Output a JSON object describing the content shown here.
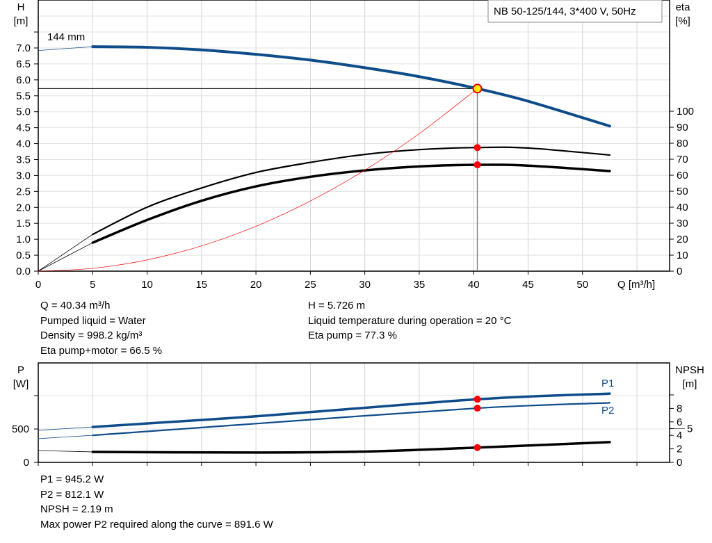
{
  "title": "NB 50-125/144, 3*400 V, 50Hz",
  "impeller_label": "144 mm",
  "chart_data": [
    {
      "type": "line",
      "xlabel": "Q [m³/h]",
      "ylabel": "H\n[m]",
      "y2label": "eta\n[%]",
      "xlim": [
        0,
        58
      ],
      "ylim": [
        0,
        8.5
      ],
      "y2lim": [
        0,
        100
      ],
      "grid": true,
      "xticks": [
        0,
        5,
        10,
        15,
        20,
        25,
        30,
        35,
        40,
        45,
        50
      ],
      "yticks": [
        0.0,
        0.5,
        1.0,
        1.5,
        2.0,
        2.5,
        3.0,
        3.5,
        4.0,
        4.5,
        5.0,
        5.5,
        6.0,
        6.5,
        7.0
      ],
      "y2ticks": [
        0,
        10,
        20,
        30,
        40,
        50,
        60,
        70,
        80,
        90,
        100
      ],
      "series": [
        {
          "id": "H",
          "color": "#0e4c8a",
          "x": [
            0,
            5,
            10,
            15,
            20,
            25,
            30,
            35,
            40.34,
            45,
            52.5
          ],
          "y": [
            6.92,
            7.04,
            7.02,
            6.94,
            6.8,
            6.62,
            6.38,
            6.1,
            5.726,
            5.33,
            4.55
          ]
        },
        {
          "id": "eta_pump",
          "axis": "y2",
          "color": "#000000",
          "x": [
            0,
            5,
            10,
            15,
            20,
            25,
            30,
            35,
            40.34,
            45,
            52.5
          ],
          "y": [
            0,
            23,
            40,
            52,
            61.7,
            68,
            73,
            76,
            77.3,
            77,
            72.6
          ]
        },
        {
          "id": "eta_pump_motor",
          "axis": "y2",
          "color": "#000000",
          "x": [
            0,
            5,
            10,
            15,
            20,
            25,
            30,
            35,
            40.34,
            45,
            52.5
          ],
          "y": [
            0,
            17.8,
            32,
            44,
            53,
            59,
            63,
            65.5,
            66.5,
            66,
            62.6
          ]
        },
        {
          "id": "system_curve",
          "color": "#ff0000",
          "x": [
            0,
            5,
            10,
            15,
            20,
            25,
            30,
            35,
            40.34
          ],
          "y": [
            0,
            0.088,
            0.352,
            0.792,
            1.408,
            2.2,
            3.168,
            4.312,
            5.726
          ]
        }
      ],
      "operating_point": {
        "Q": 40.34,
        "H": 5.726,
        "eta_pump": 77.3,
        "eta_pump_motor": 66.5
      }
    },
    {
      "type": "line",
      "ylabel": "P\n[W]",
      "y2label": "NPSH\n[m]",
      "xlim": [
        0,
        58
      ],
      "ylim": [
        0,
        1500
      ],
      "y2lim": [
        0,
        14.6
      ],
      "grid": true,
      "yticks": [
        0,
        500
      ],
      "y2ticks": [
        0,
        2,
        4,
        5,
        6,
        8
      ],
      "series": [
        {
          "name": "P1",
          "color": "#0e4c8a",
          "x": [
            0,
            5,
            20,
            40.34,
            52.5
          ],
          "y": [
            480,
            530,
            690,
            945.2,
            1030
          ]
        },
        {
          "name": "P2",
          "color": "#0e4c8a",
          "x": [
            0,
            5,
            20,
            40.34,
            52.5
          ],
          "y": [
            355,
            405,
            580,
            812.1,
            891.6
          ]
        },
        {
          "id": "NPSH",
          "axis": "y2",
          "color": "#000000",
          "x": [
            0,
            5,
            20,
            30,
            40.34,
            52.5
          ],
          "y": [
            1.75,
            1.55,
            1.45,
            1.6,
            2.19,
            3.0
          ]
        }
      ]
    }
  ],
  "info_top": {
    "left": [
      "Q = 40.34 m³/h",
      "Pumped liquid = Water",
      "Density = 998.2 kg/m³",
      "Eta pump+motor = 66.5 %"
    ],
    "right": [
      "H = 5.726 m",
      "Liquid temperature during operation = 20 °C",
      "Eta pump = 77.3 %"
    ]
  },
  "info_bottom": [
    "P1 = 945.2 W",
    "P2 = 812.1 W",
    "NPSH = 2.19 m",
    "Max power P2 required along the curve = 891.6 W"
  ]
}
